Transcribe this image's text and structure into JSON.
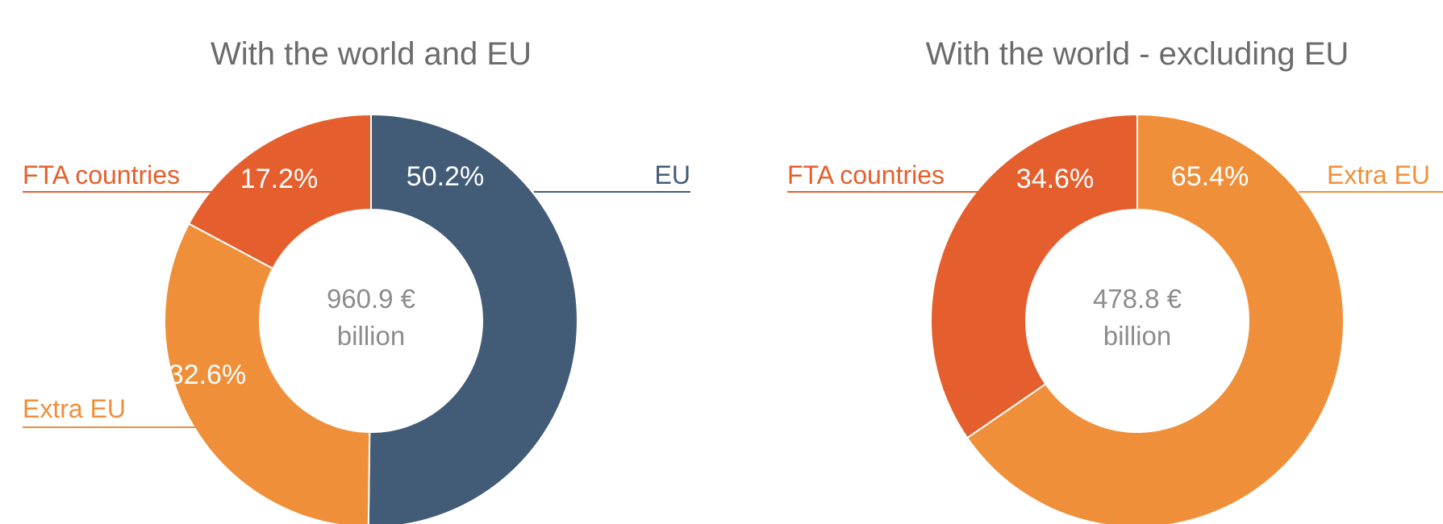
{
  "colors": {
    "eu": "#425B77",
    "fta": "#E55F2E",
    "extra_eu": "#EF8F3A",
    "title": "#6B6B6B",
    "center": "#8C8C8C",
    "background": "#FFFFFF"
  },
  "chart_data": [
    {
      "type": "pie",
      "title": "With the world and EU",
      "center_value": "960.9 €",
      "center_unit": "billion",
      "slices": [
        {
          "label": "EU",
          "value": 50.2,
          "value_label": "50.2%",
          "color_key": "eu"
        },
        {
          "label": "Extra EU",
          "value": 32.6,
          "value_label": "32.6%",
          "color_key": "extra_eu"
        },
        {
          "label": "FTA countries",
          "value": 17.2,
          "value_label": "17.2%",
          "color_key": "fta"
        }
      ]
    },
    {
      "type": "pie",
      "title": "With the world - excluding EU",
      "center_value": "478.8 €",
      "center_unit": "billion",
      "slices": [
        {
          "label": "Extra EU",
          "value": 65.4,
          "value_label": "65.4%",
          "color_key": "extra_eu"
        },
        {
          "label": "FTA countries",
          "value": 34.6,
          "value_label": "34.6%",
          "color_key": "fta"
        }
      ]
    }
  ]
}
